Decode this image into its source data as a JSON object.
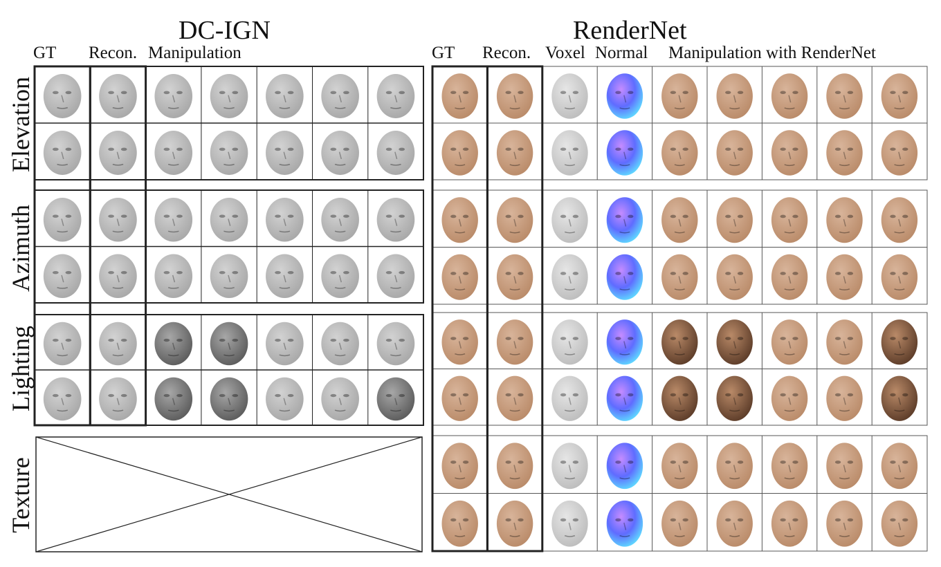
{
  "figure": {
    "dcign": {
      "title": "DC-IGN",
      "headers": {
        "gt": "GT",
        "recon": "Recon.",
        "manipulation": "Manipulation"
      },
      "row_labels": [
        "Elevation",
        "Azimuth",
        "Lighting",
        "Texture"
      ],
      "columns": 7,
      "rows_per_group": 2,
      "texture": "none"
    },
    "rendernet": {
      "title": "RenderNet",
      "headers": {
        "gt": "GT",
        "recon": "Recon.",
        "voxel": "Voxel",
        "normal": "Normal",
        "manipulation": "Manipulation with RenderNet"
      },
      "groups": 4,
      "rows_per_group": 2,
      "columns": 9
    }
  },
  "colors": {
    "dcign_face": "#a7a7a7",
    "dcign_face_light": "#d2d2d2",
    "dcign_face_dark": "#5a5a5a",
    "skin": "#b98a68",
    "skin_light": "#d8b49a",
    "skin_dark": "#5a3a27",
    "voxel": "#bcbcbc",
    "normal_a": "#5f6cff",
    "normal_b": "#c58cff",
    "normal_c": "#5fe0ff",
    "border": "#222222"
  }
}
